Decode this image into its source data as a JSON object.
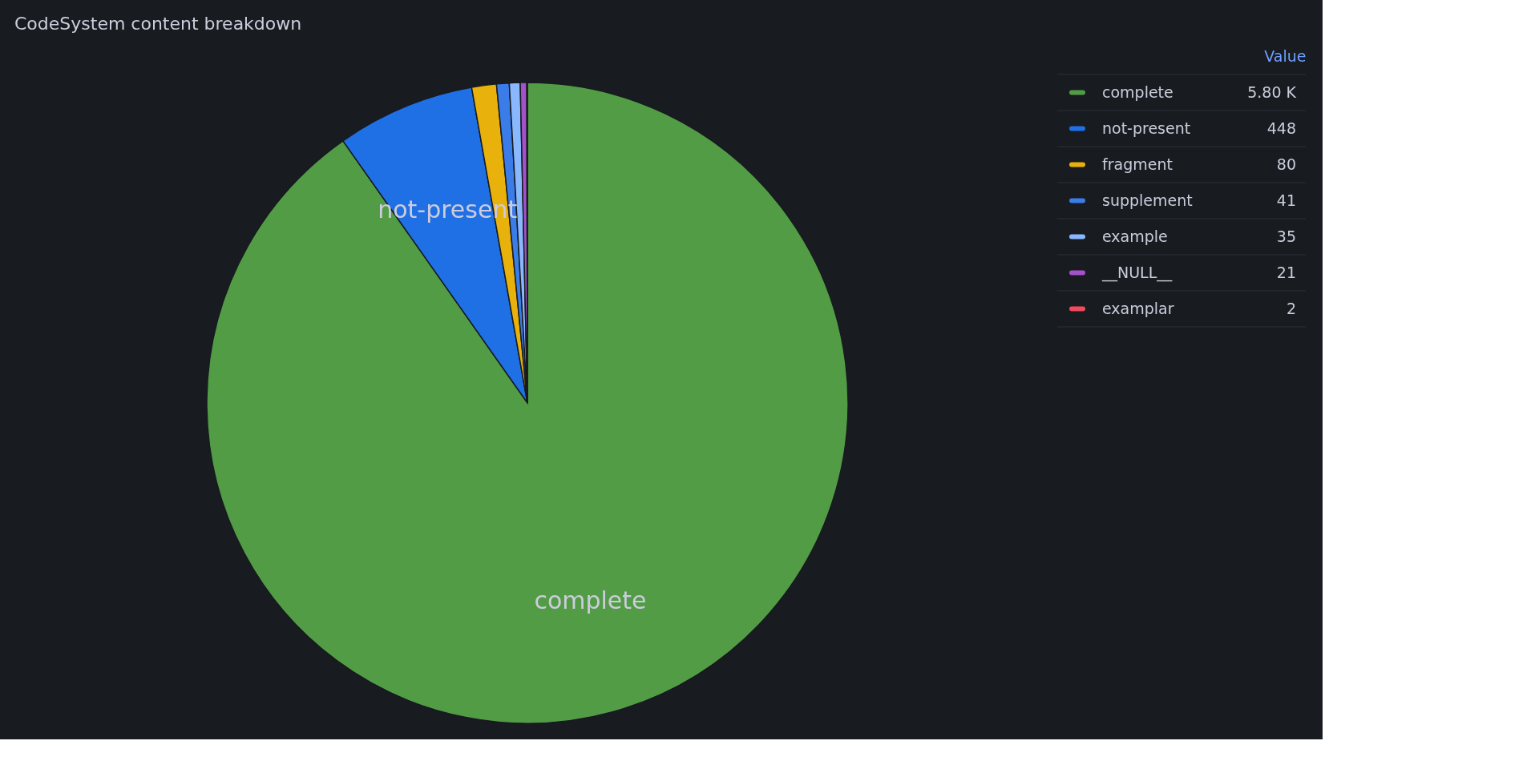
{
  "chart_data": {
    "type": "pie",
    "title": "CodeSystem content breakdown",
    "legend_title": "Value",
    "legend": "right",
    "categories": [
      "complete",
      "not-present",
      "fragment",
      "supplement",
      "example",
      "__NULL__",
      "examplar"
    ],
    "values": [
      5800,
      448,
      80,
      41,
      35,
      21,
      2
    ],
    "value_labels": [
      "5.80 K",
      "448",
      "80",
      "41",
      "35",
      "21",
      "2"
    ],
    "colors": [
      "#529c46",
      "#1f6fe5",
      "#e8b10c",
      "#3a7ce8",
      "#8ab8ff",
      "#a352cc",
      "#f2495c"
    ]
  }
}
